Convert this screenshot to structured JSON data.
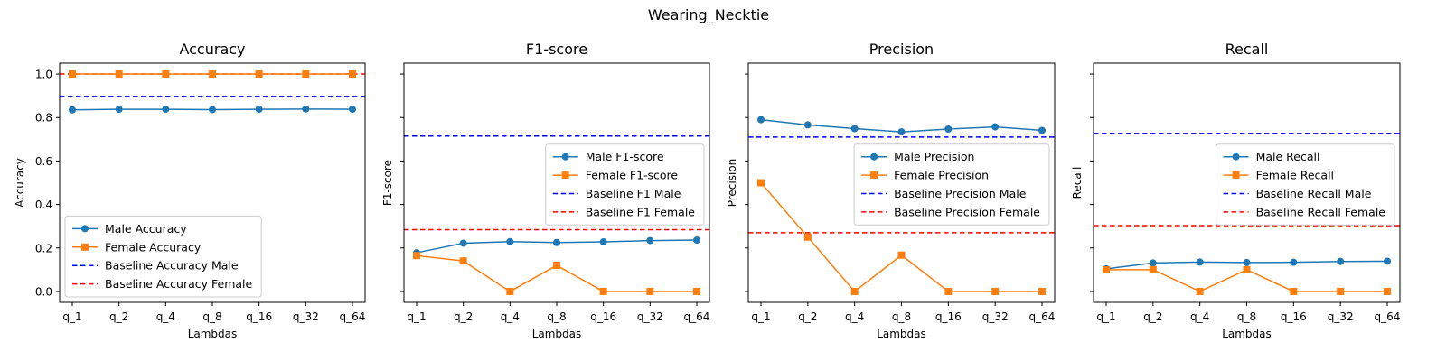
{
  "figure": {
    "suptitle": "Wearing_Necktie"
  },
  "colors": {
    "male": "#1f77b4",
    "female": "#ff7f0e",
    "baseline_male": "#0000ff",
    "baseline_female": "#ff0000"
  },
  "chart_data": [
    {
      "type": "line",
      "title": "Accuracy",
      "xlabel": "Lambdas",
      "ylabel": "Accuracy",
      "categories": [
        "q_1",
        "q_2",
        "q_4",
        "q_8",
        "q_16",
        "q_32",
        "q_64"
      ],
      "ylim": [
        -0.05,
        1.05
      ],
      "yticks": [
        "0.0",
        "0.2",
        "0.4",
        "0.6",
        "0.8",
        "1.0"
      ],
      "show_ytick_labels": true,
      "series": [
        {
          "name": "Male Accuracy",
          "values": [
            0.835,
            0.838,
            0.838,
            0.836,
            0.838,
            0.839,
            0.838
          ]
        },
        {
          "name": "Female Accuracy",
          "values": [
            1.0,
            1.0,
            1.0,
            1.0,
            1.0,
            1.0,
            1.0
          ]
        }
      ],
      "baselines": [
        {
          "name": "Baseline Accuracy Male",
          "value": 0.897
        },
        {
          "name": "Baseline Accuracy Female",
          "value": 1.0
        }
      ],
      "legend_position": "lower left"
    },
    {
      "type": "line",
      "title": "F1-score",
      "xlabel": "Lambdas",
      "ylabel": "F1-score",
      "categories": [
        "q_1",
        "q_2",
        "q_4",
        "q_8",
        "q_16",
        "q_32",
        "q_64"
      ],
      "ylim": [
        -0.05,
        1.05
      ],
      "yticks": [
        "0.0",
        "0.2",
        "0.4",
        "0.6",
        "0.8",
        "1.0"
      ],
      "show_ytick_labels": false,
      "series": [
        {
          "name": "Male F1-score",
          "values": [
            0.178,
            0.222,
            0.229,
            0.225,
            0.228,
            0.234,
            0.236
          ]
        },
        {
          "name": "Female F1-score",
          "values": [
            0.165,
            0.14,
            0.0,
            0.12,
            0.0,
            0.0,
            0.0
          ]
        }
      ],
      "baselines": [
        {
          "name": "Baseline F1 Male",
          "value": 0.715
        },
        {
          "name": "Baseline F1 Female",
          "value": 0.284
        }
      ],
      "legend_position": "center right"
    },
    {
      "type": "line",
      "title": "Precision",
      "xlabel": "Lambdas",
      "ylabel": "Precision",
      "categories": [
        "q_1",
        "q_2",
        "q_4",
        "q_8",
        "q_16",
        "q_32",
        "q_64"
      ],
      "ylim": [
        -0.05,
        1.05
      ],
      "yticks": [
        "0.0",
        "0.2",
        "0.4",
        "0.6",
        "0.8",
        "1.0"
      ],
      "show_ytick_labels": false,
      "series": [
        {
          "name": "Male Precision",
          "values": [
            0.79,
            0.766,
            0.749,
            0.734,
            0.747,
            0.757,
            0.741
          ]
        },
        {
          "name": "Female Precision",
          "values": [
            0.5,
            0.25,
            0.0,
            0.167,
            0.0,
            0.0,
            0.0
          ]
        }
      ],
      "baselines": [
        {
          "name": "Baseline Precision Male",
          "value": 0.71
        },
        {
          "name": "Baseline Precision Female",
          "value": 0.27
        }
      ],
      "legend_position": "center right"
    },
    {
      "type": "line",
      "title": "Recall",
      "xlabel": "Lambdas",
      "ylabel": "Recall",
      "categories": [
        "q_1",
        "q_2",
        "q_4",
        "q_8",
        "q_16",
        "q_32",
        "q_64"
      ],
      "ylim": [
        -0.05,
        1.05
      ],
      "yticks": [
        "0.0",
        "0.2",
        "0.4",
        "0.6",
        "0.8",
        "1.0"
      ],
      "show_ytick_labels": false,
      "series": [
        {
          "name": "Male Recall",
          "values": [
            0.104,
            0.131,
            0.135,
            0.133,
            0.134,
            0.138,
            0.139
          ]
        },
        {
          "name": "Female Recall",
          "values": [
            0.1,
            0.1,
            0.0,
            0.1,
            0.0,
            0.0,
            0.0
          ]
        }
      ],
      "baselines": [
        {
          "name": "Baseline Recall Male",
          "value": 0.727
        },
        {
          "name": "Baseline Recall Female",
          "value": 0.303
        }
      ],
      "legend_position": "center right"
    }
  ]
}
